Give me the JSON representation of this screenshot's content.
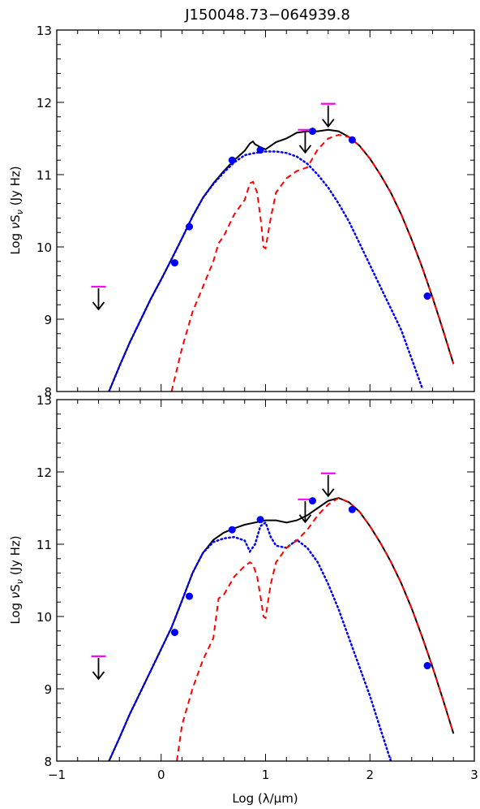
{
  "title": "J150048.73−064939.8",
  "colors": {
    "total": "#000000",
    "agn": "#ff0000",
    "host": "#0000ff",
    "data_point": "#0000ff",
    "limit_bar": "#ff00ff",
    "limit_arrow": "#000000"
  },
  "chart_data": [
    {
      "type": "line",
      "panel": "top",
      "title": "J150048.73−064939.8",
      "xlabel": "Log (λ/μm)",
      "ylabel": "Log νSν (Jy Hz)",
      "xlim": [
        -1,
        3
      ],
      "ylim": [
        8,
        13
      ],
      "xticks": [
        "−1",
        "0",
        "1",
        "2",
        "3"
      ],
      "yticks": [
        "8",
        "9",
        "10",
        "11",
        "12",
        "13"
      ],
      "series": [
        {
          "style": "solid",
          "color": "#000000",
          "x": [
            -0.5,
            -0.4,
            -0.3,
            -0.2,
            -0.1,
            0.0,
            0.1,
            0.2,
            0.3,
            0.4,
            0.5,
            0.6,
            0.7,
            0.8,
            0.85,
            0.88,
            0.9,
            0.95,
            1.0,
            1.1,
            1.2,
            1.3,
            1.4,
            1.5,
            1.6,
            1.7,
            1.8,
            1.9,
            2.0,
            2.1,
            2.2,
            2.3,
            2.4,
            2.5,
            2.6,
            2.7,
            2.8
          ],
          "y": [
            8.0,
            8.35,
            8.68,
            8.98,
            9.28,
            9.55,
            9.83,
            10.12,
            10.42,
            10.68,
            10.88,
            11.05,
            11.2,
            11.33,
            11.43,
            11.46,
            11.42,
            11.38,
            11.35,
            11.45,
            11.5,
            11.58,
            11.6,
            11.6,
            11.62,
            11.6,
            11.52,
            11.4,
            11.22,
            11.0,
            10.75,
            10.45,
            10.1,
            9.72,
            9.3,
            8.85,
            8.38
          ]
        },
        {
          "style": "dotted",
          "color": "#0000ff",
          "x": [
            -0.5,
            -0.4,
            -0.3,
            -0.2,
            -0.1,
            0.0,
            0.1,
            0.2,
            0.3,
            0.4,
            0.5,
            0.6,
            0.7,
            0.8,
            0.9,
            1.0,
            1.1,
            1.2,
            1.3,
            1.4,
            1.5,
            1.6,
            1.7,
            1.8,
            1.9,
            2.0,
            2.1,
            2.2,
            2.3,
            2.4,
            2.5
          ],
          "y": [
            8.0,
            8.35,
            8.68,
            8.98,
            9.28,
            9.55,
            9.83,
            10.12,
            10.42,
            10.68,
            10.87,
            11.03,
            11.17,
            11.27,
            11.3,
            11.32,
            11.32,
            11.3,
            11.25,
            11.15,
            11.0,
            10.82,
            10.6,
            10.35,
            10.05,
            9.75,
            9.45,
            9.15,
            8.85,
            8.45,
            8.05
          ]
        },
        {
          "style": "dashed",
          "color": "#ff0000",
          "x": [
            0.1,
            0.2,
            0.3,
            0.4,
            0.5,
            0.55,
            0.6,
            0.7,
            0.8,
            0.85,
            0.88,
            0.92,
            0.96,
            0.98,
            1.0,
            1.05,
            1.1,
            1.2,
            1.3,
            1.4,
            1.5,
            1.6,
            1.7,
            1.8,
            1.9,
            2.0,
            2.1,
            2.2,
            2.3,
            2.4,
            2.5,
            2.6,
            2.7,
            2.8
          ],
          "y": [
            8.0,
            8.6,
            9.1,
            9.45,
            9.8,
            10.05,
            10.15,
            10.45,
            10.65,
            10.88,
            10.9,
            10.75,
            10.3,
            10.0,
            9.98,
            10.4,
            10.75,
            10.95,
            11.05,
            11.1,
            11.35,
            11.5,
            11.55,
            11.52,
            11.4,
            11.22,
            11.0,
            10.75,
            10.45,
            10.1,
            9.72,
            9.3,
            8.85,
            8.38
          ]
        }
      ],
      "points": {
        "x": [
          0.13,
          0.27,
          0.68,
          0.95,
          1.45,
          1.83,
          2.55
        ],
        "y": [
          9.78,
          10.28,
          11.2,
          11.34,
          11.6,
          11.48,
          9.32
        ]
      },
      "upper_limits": {
        "x": [
          -0.6,
          1.38,
          1.6
        ],
        "y": [
          9.45,
          11.62,
          11.98
        ]
      }
    },
    {
      "type": "line",
      "panel": "bottom",
      "xlabel": "Log (λ/μm)",
      "ylabel": "Log νSν (Jy Hz)",
      "xlim": [
        -1,
        3
      ],
      "ylim": [
        8,
        13
      ],
      "xticks": [
        "−1",
        "0",
        "1",
        "2",
        "3"
      ],
      "yticks": [
        "8",
        "9",
        "10",
        "11",
        "12",
        "13"
      ],
      "series": [
        {
          "style": "solid",
          "color": "#000000",
          "x": [
            -0.5,
            -0.4,
            -0.3,
            -0.2,
            -0.1,
            0.0,
            0.1,
            0.2,
            0.3,
            0.4,
            0.5,
            0.6,
            0.7,
            0.8,
            0.9,
            1.0,
            1.1,
            1.2,
            1.3,
            1.4,
            1.5,
            1.6,
            1.7,
            1.8,
            1.9,
            2.0,
            2.1,
            2.2,
            2.3,
            2.4,
            2.5,
            2.6,
            2.7,
            2.8
          ],
          "y": [
            8.0,
            8.32,
            8.65,
            8.95,
            9.25,
            9.55,
            9.85,
            10.22,
            10.6,
            10.88,
            11.06,
            11.16,
            11.22,
            11.27,
            11.3,
            11.33,
            11.33,
            11.3,
            11.33,
            11.4,
            11.5,
            11.6,
            11.64,
            11.58,
            11.45,
            11.25,
            11.02,
            10.76,
            10.46,
            10.11,
            9.72,
            9.3,
            8.85,
            8.38
          ]
        },
        {
          "style": "dotted",
          "color": "#0000ff",
          "x": [
            -0.5,
            -0.4,
            -0.3,
            -0.2,
            -0.1,
            0.0,
            0.1,
            0.2,
            0.3,
            0.4,
            0.5,
            0.6,
            0.7,
            0.8,
            0.85,
            0.9,
            0.95,
            1.0,
            1.05,
            1.1,
            1.2,
            1.3,
            1.4,
            1.5,
            1.6,
            1.7,
            1.8,
            1.9,
            2.0,
            2.1,
            2.2
          ],
          "y": [
            8.0,
            8.32,
            8.65,
            8.95,
            9.25,
            9.55,
            9.85,
            10.22,
            10.6,
            10.88,
            11.03,
            11.08,
            11.1,
            11.05,
            10.9,
            11.0,
            11.25,
            11.3,
            11.1,
            10.98,
            10.95,
            11.06,
            10.95,
            10.75,
            10.45,
            10.1,
            9.7,
            9.3,
            8.9,
            8.45,
            8.0
          ]
        },
        {
          "style": "dashed",
          "color": "#ff0000",
          "x": [
            0.15,
            0.2,
            0.3,
            0.4,
            0.5,
            0.55,
            0.6,
            0.7,
            0.8,
            0.85,
            0.88,
            0.92,
            0.96,
            0.98,
            1.0,
            1.05,
            1.1,
            1.2,
            1.3,
            1.4,
            1.5,
            1.6,
            1.7,
            1.8,
            1.9,
            2.0,
            2.1,
            2.2,
            2.3,
            2.4,
            2.5,
            2.6,
            2.7,
            2.8
          ],
          "y": [
            8.0,
            8.5,
            9.0,
            9.4,
            9.7,
            10.25,
            10.3,
            10.55,
            10.7,
            10.75,
            10.72,
            10.55,
            10.2,
            10.0,
            9.98,
            10.45,
            10.75,
            10.95,
            11.05,
            11.2,
            11.4,
            11.55,
            11.64,
            11.58,
            11.45,
            11.25,
            11.02,
            10.76,
            10.46,
            10.11,
            9.72,
            9.3,
            8.85,
            8.38
          ]
        }
      ],
      "points": {
        "x": [
          0.13,
          0.27,
          0.68,
          0.95,
          1.45,
          1.83,
          2.55
        ],
        "y": [
          9.78,
          10.28,
          11.2,
          11.34,
          11.6,
          11.48,
          9.32
        ]
      },
      "upper_limits": {
        "x": [
          -0.6,
          1.38,
          1.6
        ],
        "y": [
          9.45,
          11.62,
          11.98
        ]
      }
    }
  ]
}
